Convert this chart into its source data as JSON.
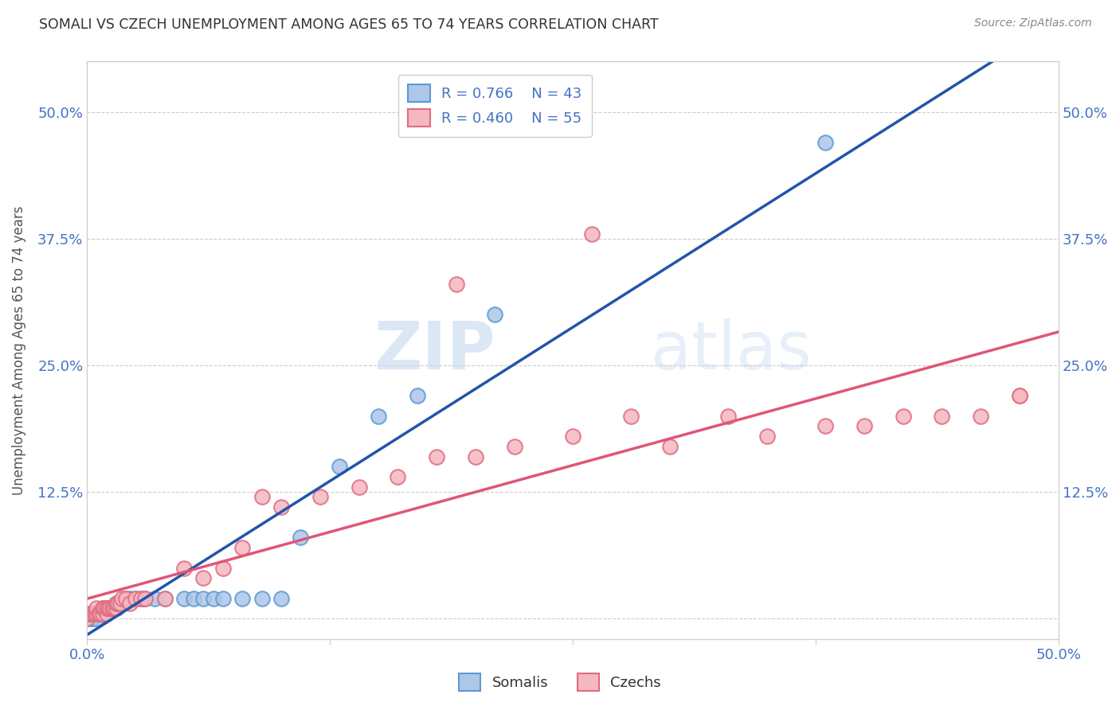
{
  "title": "SOMALI VS CZECH UNEMPLOYMENT AMONG AGES 65 TO 74 YEARS CORRELATION CHART",
  "source": "Source: ZipAtlas.com",
  "xlabel": "",
  "ylabel": "Unemployment Among Ages 65 to 74 years",
  "xlim": [
    0.0,
    0.5
  ],
  "ylim": [
    -0.02,
    0.55
  ],
  "x_ticks": [
    0.0,
    0.125,
    0.25,
    0.375,
    0.5
  ],
  "x_tick_labels": [
    "0.0%",
    "",
    "",
    "",
    "50.0%"
  ],
  "y_ticks": [
    0.0,
    0.125,
    0.25,
    0.375,
    0.5
  ],
  "y_tick_labels": [
    "",
    "12.5%",
    "25.0%",
    "37.5%",
    "50.0%"
  ],
  "right_y_tick_labels": [
    "",
    "12.5%",
    "25.0%",
    "37.5%",
    "50.0%"
  ],
  "somali_color": "#aec6e8",
  "somali_edge_color": "#5b9bd5",
  "czech_color": "#f4b8c1",
  "czech_edge_color": "#e06c80",
  "somali_line_color": "#2255aa",
  "czech_line_color": "#e05577",
  "R_somali": 0.766,
  "N_somali": 43,
  "R_czech": 0.46,
  "N_czech": 55,
  "legend_label_somali": "Somalis",
  "legend_label_czech": "Czechs",
  "somali_x": [
    0.0,
    0.002,
    0.003,
    0.003,
    0.005,
    0.005,
    0.006,
    0.007,
    0.008,
    0.008,
    0.009,
    0.009,
    0.01,
    0.01,
    0.011,
    0.012,
    0.013,
    0.015,
    0.015,
    0.016,
    0.017,
    0.018,
    0.02,
    0.022,
    0.025,
    0.028,
    0.03,
    0.035,
    0.04,
    0.05,
    0.055,
    0.06,
    0.065,
    0.07,
    0.08,
    0.09,
    0.1,
    0.11,
    0.13,
    0.15,
    0.17,
    0.21,
    0.38
  ],
  "somali_y": [
    0.0,
    0.0,
    0.0,
    0.005,
    0.0,
    0.005,
    0.005,
    0.005,
    0.005,
    0.01,
    0.005,
    0.01,
    0.005,
    0.01,
    0.01,
    0.01,
    0.01,
    0.01,
    0.015,
    0.015,
    0.015,
    0.015,
    0.02,
    0.02,
    0.02,
    0.02,
    0.02,
    0.02,
    0.02,
    0.02,
    0.02,
    0.02,
    0.02,
    0.02,
    0.02,
    0.02,
    0.02,
    0.08,
    0.15,
    0.2,
    0.22,
    0.3,
    0.47
  ],
  "czech_x": [
    0.0,
    0.0,
    0.002,
    0.003,
    0.004,
    0.005,
    0.005,
    0.006,
    0.007,
    0.008,
    0.008,
    0.009,
    0.01,
    0.01,
    0.011,
    0.012,
    0.013,
    0.014,
    0.015,
    0.015,
    0.016,
    0.017,
    0.018,
    0.02,
    0.022,
    0.025,
    0.028,
    0.03,
    0.04,
    0.05,
    0.06,
    0.07,
    0.08,
    0.09,
    0.1,
    0.12,
    0.14,
    0.16,
    0.18,
    0.2,
    0.22,
    0.25,
    0.28,
    0.3,
    0.33,
    0.35,
    0.38,
    0.4,
    0.42,
    0.44,
    0.46,
    0.48,
    0.48,
    0.19,
    0.26
  ],
  "czech_y": [
    0.0,
    0.005,
    0.005,
    0.005,
    0.005,
    0.005,
    0.01,
    0.005,
    0.005,
    0.005,
    0.01,
    0.01,
    0.005,
    0.01,
    0.01,
    0.01,
    0.01,
    0.01,
    0.01,
    0.015,
    0.015,
    0.015,
    0.02,
    0.02,
    0.015,
    0.02,
    0.02,
    0.02,
    0.02,
    0.05,
    0.04,
    0.05,
    0.07,
    0.12,
    0.11,
    0.12,
    0.13,
    0.14,
    0.16,
    0.16,
    0.17,
    0.18,
    0.2,
    0.17,
    0.2,
    0.18,
    0.19,
    0.19,
    0.2,
    0.2,
    0.2,
    0.22,
    0.22,
    0.33,
    0.38
  ],
  "watermark_zip": "ZIP",
  "watermark_atlas": "atlas",
  "background_color": "#ffffff",
  "grid_color": "#cccccc"
}
